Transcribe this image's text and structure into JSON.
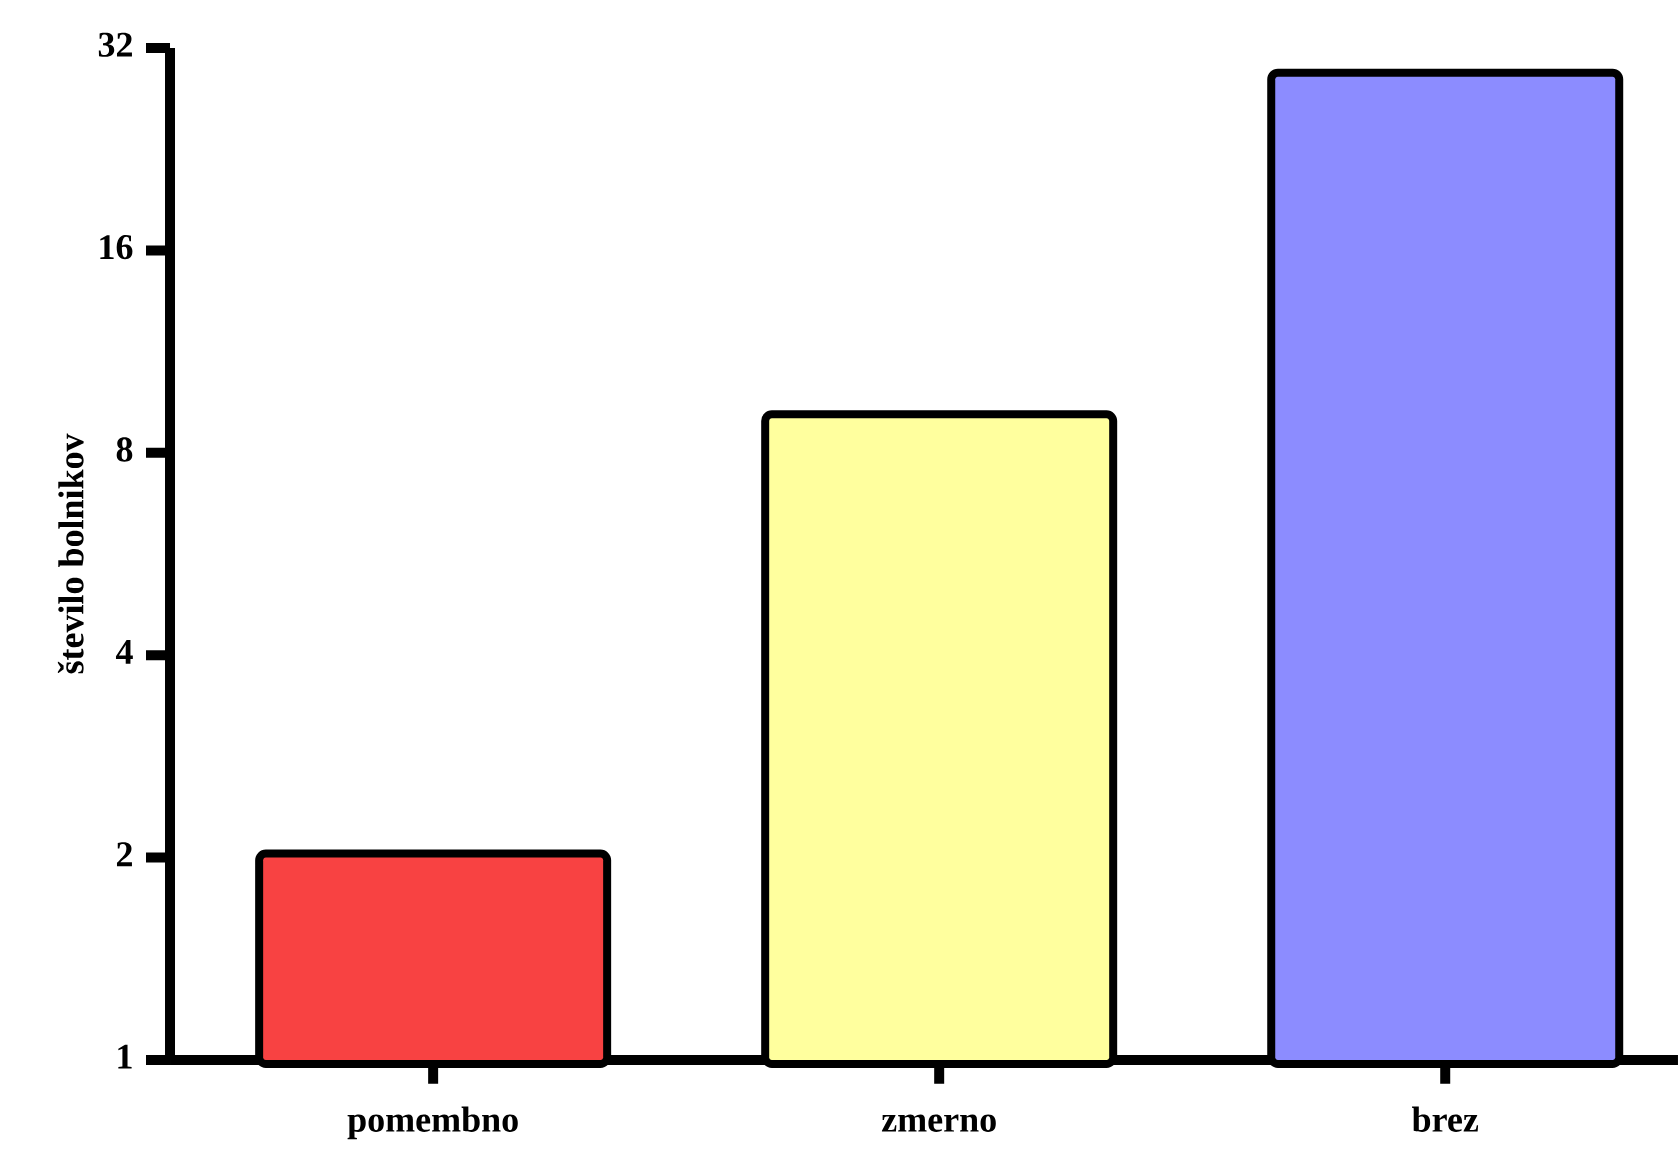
{
  "chart_data": {
    "type": "bar",
    "ylabel": "število bolnikov",
    "categories": [
      "pomembno",
      "zmerno",
      "brez"
    ],
    "values": [
      2,
      9,
      29
    ],
    "colors": [
      "#f84242",
      "#ffff9e",
      "#8c8cff"
    ],
    "log": "y",
    "ylim": [
      1,
      32
    ],
    "yticks": [
      1,
      2,
      4,
      8,
      16,
      32
    ]
  }
}
